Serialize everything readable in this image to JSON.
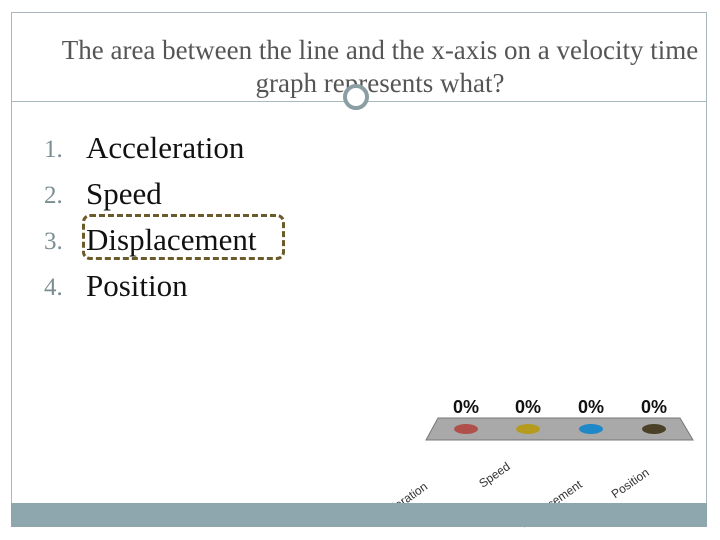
{
  "slide": {
    "title": "The area between the line and the x-axis on a velocity time graph represents what?"
  },
  "options": [
    {
      "number": "1.",
      "label": "Acceleration"
    },
    {
      "number": "2.",
      "label": "Speed"
    },
    {
      "number": "3.",
      "label": "Displacement"
    },
    {
      "number": "4.",
      "label": "Position"
    }
  ],
  "highlighted_option_index": 2,
  "colors": {
    "accent": "#8ea7ae",
    "frame": "#a8b8bd",
    "highlight": "#6b5a2a",
    "bar_acceleration": "#b0504a",
    "bar_speed": "#b59c1e",
    "bar_displacement": "#1e88c8",
    "bar_position": "#4a4128"
  },
  "chart_data": {
    "type": "bar",
    "categories": [
      "Acceleration",
      "Speed",
      "Displacement",
      "Position"
    ],
    "values": [
      0,
      0,
      0,
      0
    ],
    "value_labels": [
      "0%",
      "0%",
      "0%",
      "0%"
    ],
    "ylim": [
      0,
      100
    ]
  }
}
